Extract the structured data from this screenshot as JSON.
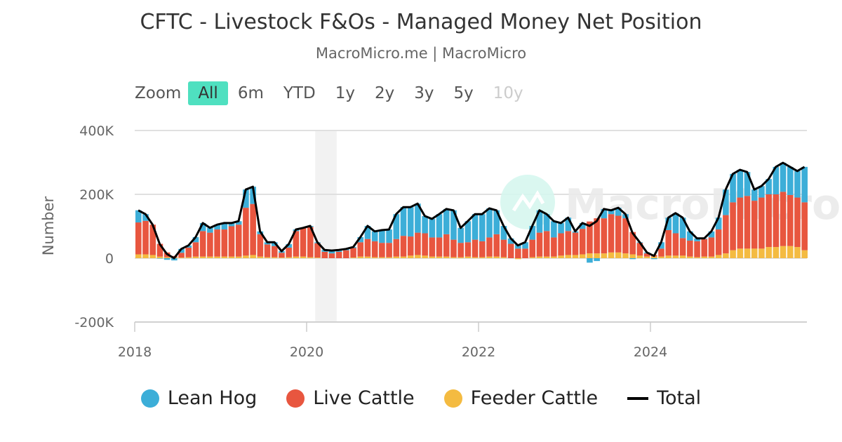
{
  "title": "CFTC - Livestock F&Os - Managed Money Net Position",
  "subtitle": "MacroMicro.me | MacroMicro",
  "zoom": {
    "label": "Zoom",
    "buttons": [
      "All",
      "6m",
      "YTD",
      "1y",
      "2y",
      "3y",
      "5y",
      "10y"
    ],
    "active": "All",
    "disabled": [
      "10y"
    ]
  },
  "watermark": "MacroMicro",
  "colors": {
    "lean_hog": "#3caed8",
    "live_cattle": "#e8563f",
    "feeder_cattle": "#f4bb41",
    "total": "#000000",
    "accent": "#4fe0c0"
  },
  "chart_data": {
    "type": "bar",
    "stacked": true,
    "title": "CFTC - Livestock F&Os - Managed Money Net Position",
    "ylabel": "Number",
    "xlabel": "",
    "ylim": [
      -200000,
      400000
    ],
    "yticks": [
      "-200K",
      "0",
      "200K",
      "400K"
    ],
    "ytick_values": [
      -200000,
      0,
      200000,
      400000
    ],
    "xticks": [
      "2018",
      "2020",
      "2022",
      "2024"
    ],
    "xtick_values": [
      2018,
      2020,
      2022,
      2024
    ],
    "xlim": [
      2018,
      2025.9
    ],
    "x_start": "2018-01",
    "x_frequency": "monthly",
    "highlight_band": [
      2020.1,
      2020.35
    ],
    "legend_position": "bottom",
    "units": "thousands",
    "series": [
      {
        "name": "Lean Hog",
        "key": "lean_hog",
        "values": [
          38,
          21,
          0,
          -1,
          -5,
          -7,
          12,
          7,
          16,
          25,
          15,
          15,
          20,
          10,
          11,
          57,
          54,
          9,
          7,
          12,
          5,
          11,
          5,
          0,
          3,
          3,
          6,
          9,
          6,
          4,
          3,
          16,
          41,
          31,
          40,
          42,
          78,
          90,
          92,
          91,
          54,
          58,
          73,
          79,
          92,
          47,
          66,
          80,
          85,
          91,
          75,
          43,
          17,
          13,
          20,
          43,
          70,
          53,
          51,
          32,
          42,
          4,
          18,
          -14,
          -9,
          29,
          12,
          25,
          13,
          -3,
          2,
          3,
          -3,
          20,
          39,
          63,
          64,
          29,
          9,
          2,
          19,
          37,
          80,
          89,
          87,
          75,
          35,
          36,
          48,
          86,
          91,
          88,
          83,
          111
        ]
      },
      {
        "name": "Live Cattle",
        "key": "live_cattle",
        "values": [
          100,
          105,
          95,
          40,
          15,
          5,
          15,
          30,
          45,
          80,
          75,
          85,
          85,
          95,
          100,
          150,
          160,
          70,
          40,
          35,
          15,
          30,
          80,
          90,
          95,
          45,
          20,
          15,
          20,
          25,
          30,
          45,
          55,
          50,
          45,
          45,
          55,
          65,
          60,
          70,
          70,
          60,
          60,
          70,
          55,
          45,
          45,
          55,
          50,
          60,
          70,
          55,
          45,
          30,
          30,
          55,
          75,
          80,
          60,
          70,
          75,
          70,
          80,
          100,
          110,
          110,
          120,
          115,
          110,
          70,
          40,
          10,
          5,
          25,
          80,
          70,
          55,
          50,
          50,
          55,
          60,
          80,
          120,
          150,
          160,
          165,
          150,
          160,
          165,
          165,
          170,
          160,
          155,
          150
        ]
      },
      {
        "name": "Feeder Cattle",
        "key": "feeder_cattle",
        "values": [
          12,
          12,
          10,
          5,
          3,
          2,
          2,
          3,
          5,
          5,
          5,
          5,
          5,
          5,
          5,
          8,
          10,
          5,
          3,
          3,
          2,
          3,
          5,
          5,
          3,
          2,
          0,
          0,
          0,
          0,
          2,
          5,
          5,
          3,
          3,
          3,
          5,
          5,
          8,
          10,
          8,
          5,
          5,
          5,
          3,
          3,
          5,
          3,
          3,
          5,
          5,
          3,
          0,
          -3,
          0,
          3,
          5,
          5,
          5,
          8,
          10,
          10,
          12,
          15,
          15,
          15,
          18,
          18,
          15,
          12,
          8,
          5,
          5,
          5,
          8,
          8,
          8,
          5,
          3,
          5,
          5,
          10,
          15,
          25,
          30,
          30,
          30,
          30,
          35,
          35,
          38,
          38,
          35,
          25
        ]
      },
      {
        "name": "Total",
        "key": "total",
        "type": "line",
        "values": [
          150,
          138,
          105,
          44,
          13,
          0,
          29,
          40,
          66,
          110,
          95,
          105,
          110,
          110,
          116,
          215,
          224,
          84,
          50,
          50,
          22,
          44,
          90,
          95,
          101,
          50,
          26,
          24,
          26,
          29,
          35,
          66,
          101,
          84,
          88,
          90,
          138,
          160,
          160,
          171,
          132,
          123,
          138,
          154,
          150,
          95,
          116,
          138,
          138,
          156,
          150,
          101,
          62,
          40,
          50,
          101,
          150,
          138,
          116,
          110,
          127,
          84,
          110,
          101,
          116,
          154,
          150,
          158,
          138,
          79,
          50,
          18,
          7,
          50,
          127,
          141,
          127,
          84,
          62,
          62,
          84,
          127,
          215,
          264,
          277,
          270,
          215,
          226,
          248,
          286,
          299,
          286,
          273,
          286
        ]
      }
    ]
  }
}
